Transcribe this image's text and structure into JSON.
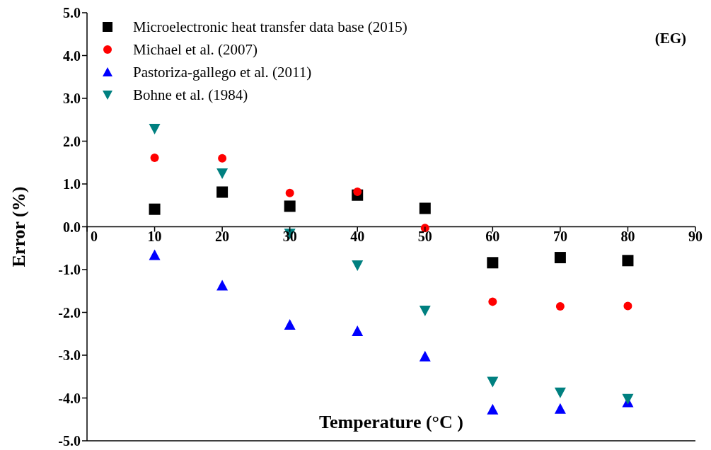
{
  "chart_data": {
    "type": "scatter",
    "xlabel": "Temperature (°C )",
    "ylabel": "Error (%)",
    "annotations": [
      "(EG)"
    ],
    "x": [
      10,
      20,
      30,
      40,
      50,
      60,
      70,
      80
    ],
    "series": [
      {
        "name": "Microelectronic heat transfer data base (2015)",
        "color": "#000000",
        "marker": "square",
        "values": [
          0.41,
          0.81,
          0.48,
          0.74,
          0.43,
          -0.84,
          -0.72,
          -0.79
        ]
      },
      {
        "name": "Michael et al. (2007)",
        "color": "#ff0000",
        "marker": "circle",
        "values": [
          1.61,
          1.6,
          0.79,
          0.82,
          -0.03,
          -1.75,
          -1.86,
          -1.85
        ]
      },
      {
        "name": "Pastoriza-gallego et al. (2011)",
        "color": "#0000ff",
        "marker": "triangle",
        "values": [
          -0.66,
          -1.37,
          -2.29,
          -2.44,
          -3.03,
          -4.27,
          -4.25,
          -4.1
        ]
      },
      {
        "name": "Bohne et al. (1984)",
        "color": "#008080",
        "marker": "triangle-down",
        "values": [
          2.29,
          1.25,
          -0.16,
          -0.9,
          -1.96,
          -3.62,
          -3.87,
          -4.02
        ]
      }
    ],
    "xlim": [
      0,
      90
    ],
    "xticks": [
      0,
      10,
      20,
      30,
      40,
      50,
      60,
      70,
      80,
      90
    ],
    "ylim": [
      -5,
      5
    ],
    "yticks": [
      {
        "value": -5,
        "label": "-5.0"
      },
      {
        "value": -4,
        "label": "-4.0"
      },
      {
        "value": -3,
        "label": "-3.0"
      },
      {
        "value": -2,
        "label": "-2.0"
      },
      {
        "value": -1,
        "label": "-1.0"
      },
      {
        "value": 0,
        "label": "0.0"
      },
      {
        "value": 1,
        "label": "1.0"
      },
      {
        "value": 2,
        "label": "2.0"
      },
      {
        "value": 3,
        "label": "3.0"
      },
      {
        "value": 4,
        "label": "4.0"
      },
      {
        "value": 5,
        "label": "5.0"
      }
    ],
    "grid": false,
    "legend": "top left"
  }
}
